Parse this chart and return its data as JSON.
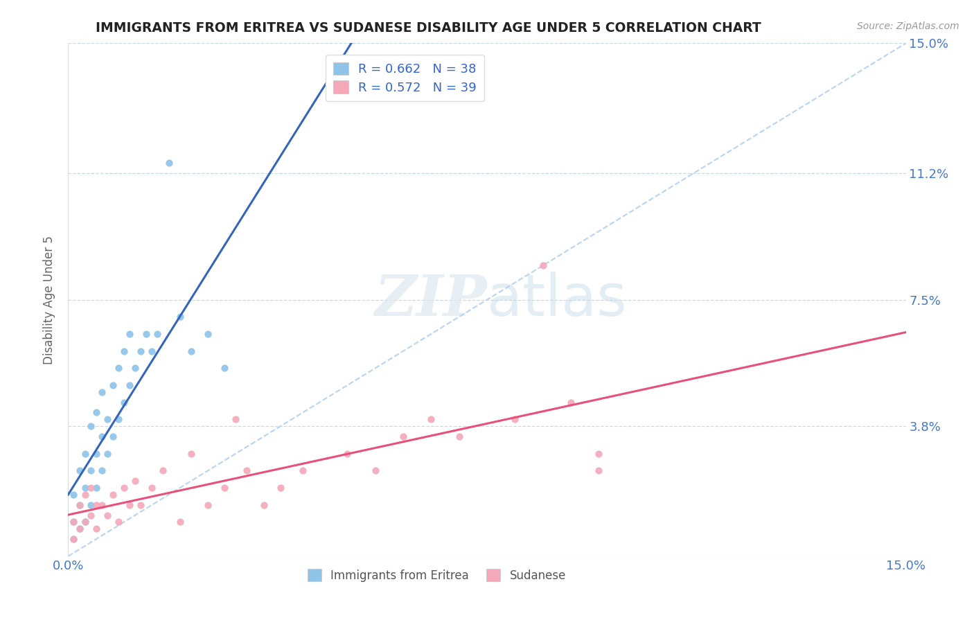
{
  "title": "IMMIGRANTS FROM ERITREA VS SUDANESE DISABILITY AGE UNDER 5 CORRELATION CHART",
  "source_text": "Source: ZipAtlas.com",
  "ylabel": "Disability Age Under 5",
  "xlim": [
    0.0,
    0.15
  ],
  "ylim": [
    0.0,
    0.15
  ],
  "yticks": [
    0.0,
    0.038,
    0.075,
    0.112,
    0.15
  ],
  "xticks": [
    0.0,
    0.15
  ],
  "xtick_labels": [
    "0.0%",
    "15.0%"
  ],
  "ytick_labels_right": [
    "",
    "3.8%",
    "7.5%",
    "11.2%",
    "15.0%"
  ],
  "legend_eritrea": "Immigrants from Eritrea",
  "legend_sudanese": "Sudanese",
  "R_eritrea": 0.662,
  "N_eritrea": 38,
  "R_sudanese": 0.572,
  "N_sudanese": 39,
  "color_eritrea": "#8ec4e8",
  "color_sudanese": "#f4a8b8",
  "color_regression_eritrea": "#3366bb",
  "color_regression_sudanese": "#e8507a",
  "color_diagonal": "#b8d4ee",
  "color_axis_labels": "#4477cc",
  "color_legend_text": "#3366cc",
  "background_color": "#ffffff",
  "watermark_zip": "ZIP",
  "watermark_atlas": "atlas",
  "eritrea_x": [
    0.001,
    0.001,
    0.001,
    0.002,
    0.002,
    0.002,
    0.003,
    0.003,
    0.003,
    0.004,
    0.004,
    0.004,
    0.005,
    0.005,
    0.005,
    0.006,
    0.006,
    0.006,
    0.007,
    0.007,
    0.008,
    0.008,
    0.009,
    0.009,
    0.01,
    0.01,
    0.011,
    0.011,
    0.012,
    0.013,
    0.014,
    0.015,
    0.016,
    0.018,
    0.02,
    0.022,
    0.025,
    0.028
  ],
  "eritrea_y": [
    0.005,
    0.01,
    0.018,
    0.008,
    0.015,
    0.025,
    0.01,
    0.02,
    0.03,
    0.015,
    0.025,
    0.038,
    0.02,
    0.03,
    0.042,
    0.025,
    0.035,
    0.048,
    0.03,
    0.04,
    0.035,
    0.05,
    0.04,
    0.055,
    0.045,
    0.06,
    0.05,
    0.065,
    0.055,
    0.06,
    0.065,
    0.06,
    0.065,
    0.115,
    0.07,
    0.06,
    0.065,
    0.055
  ],
  "sudanese_x": [
    0.001,
    0.001,
    0.002,
    0.002,
    0.003,
    0.003,
    0.004,
    0.004,
    0.005,
    0.005,
    0.006,
    0.007,
    0.008,
    0.009,
    0.01,
    0.011,
    0.012,
    0.013,
    0.015,
    0.017,
    0.02,
    0.022,
    0.025,
    0.028,
    0.03,
    0.032,
    0.035,
    0.038,
    0.042,
    0.05,
    0.055,
    0.06,
    0.065,
    0.07,
    0.08,
    0.085,
    0.09,
    0.095,
    0.095
  ],
  "sudanese_y": [
    0.005,
    0.01,
    0.008,
    0.015,
    0.01,
    0.018,
    0.012,
    0.02,
    0.008,
    0.015,
    0.015,
    0.012,
    0.018,
    0.01,
    0.02,
    0.015,
    0.022,
    0.015,
    0.02,
    0.025,
    0.01,
    0.03,
    0.015,
    0.02,
    0.04,
    0.025,
    0.015,
    0.02,
    0.025,
    0.03,
    0.025,
    0.035,
    0.04,
    0.035,
    0.04,
    0.085,
    0.045,
    0.03,
    0.025
  ]
}
